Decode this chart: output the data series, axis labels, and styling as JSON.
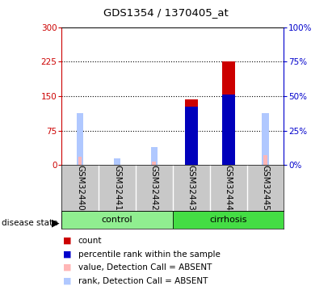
{
  "title": "GDS1354 / 1370405_at",
  "samples": [
    "GSM32440",
    "GSM32441",
    "GSM32442",
    "GSM32443",
    "GSM32444",
    "GSM32445"
  ],
  "groups": [
    "control",
    "control",
    "control",
    "cirrhosis",
    "cirrhosis",
    "cirrhosis"
  ],
  "red_values": [
    0,
    0,
    0,
    143,
    225,
    0
  ],
  "blue_values": [
    0,
    0,
    0,
    128,
    153,
    0
  ],
  "pink_values": [
    18,
    0,
    8,
    0,
    0,
    22
  ],
  "lavender_values": [
    38,
    5,
    13,
    0,
    0,
    38
  ],
  "ylim_left": [
    0,
    300
  ],
  "ylim_right": [
    0,
    100
  ],
  "yticks_left": [
    0,
    75,
    150,
    225,
    300
  ],
  "yticks_right": [
    0,
    25,
    50,
    75,
    100
  ],
  "ytick_labels_left": [
    "0",
    "75",
    "150",
    "225",
    "300"
  ],
  "ytick_labels_right": [
    "0%",
    "25%",
    "50%",
    "75%",
    "100%"
  ],
  "left_tick_color": "#CC0000",
  "right_tick_color": "#0000CC",
  "legend_labels": [
    "count",
    "percentile rank within the sample",
    "value, Detection Call = ABSENT",
    "rank, Detection Call = ABSENT"
  ],
  "legend_colors": [
    "#CC0000",
    "#0000CC",
    "#FFB6B6",
    "#B0C8FF"
  ],
  "control_color": "#90EE90",
  "cirrhosis_color": "#44DD44",
  "sample_bg": "#C8C8C8"
}
